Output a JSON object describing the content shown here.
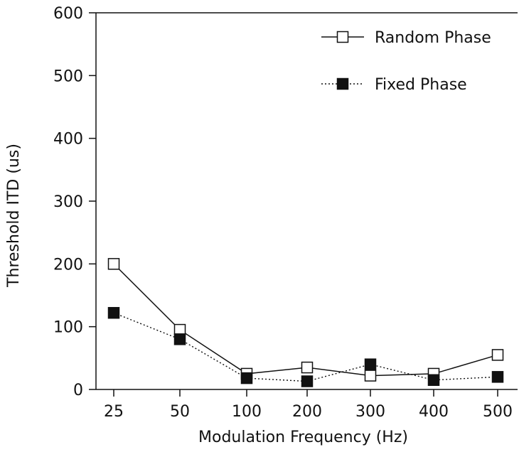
{
  "chart_data": {
    "type": "line",
    "xlabel": "Modulation Frequency (Hz)",
    "ylabel": "Threshold ITD (us)",
    "categories": [
      "25",
      "50",
      "100",
      "200",
      "300",
      "400",
      "500"
    ],
    "yticks": [
      "0",
      "100",
      "200",
      "300",
      "400",
      "500",
      "600"
    ],
    "ylim": [
      0,
      600
    ],
    "grid": false,
    "legend_position": "top-right",
    "series": [
      {
        "name": "Random Phase",
        "marker": "open-square",
        "line": "solid",
        "values": [
          200,
          95,
          25,
          35,
          22,
          25,
          55
        ]
      },
      {
        "name": "Fixed Phase",
        "marker": "filled-square",
        "line": "dotted",
        "values": [
          122,
          80,
          18,
          13,
          40,
          15,
          20
        ]
      }
    ]
  }
}
